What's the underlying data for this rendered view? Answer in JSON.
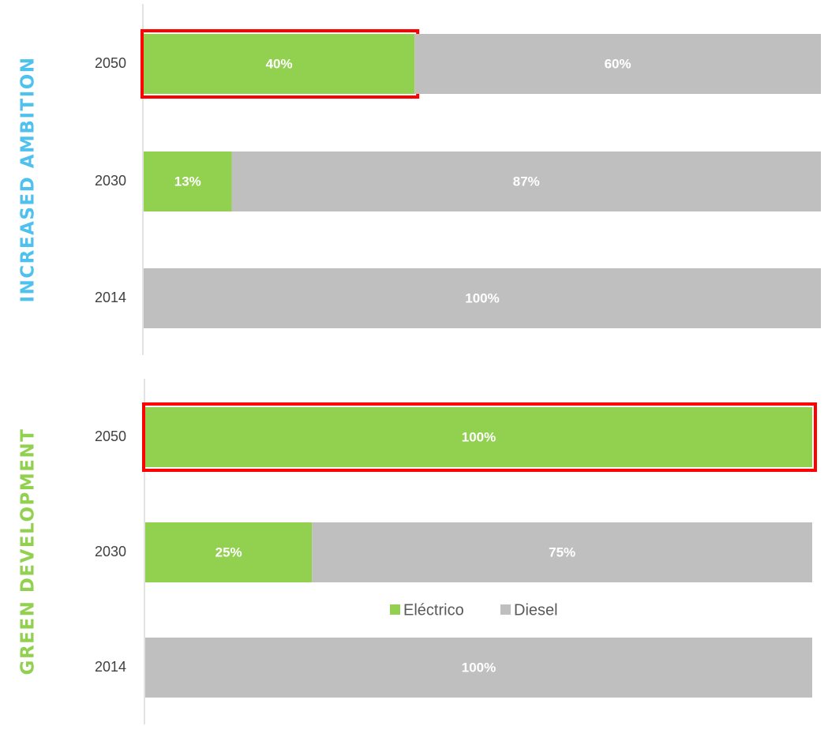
{
  "chart_data": {
    "type": "bar",
    "orientation": "horizontal",
    "stacked": true,
    "categories": [
      "2050",
      "2030",
      "2014",
      "2050",
      "2030",
      "2014"
    ],
    "groups": [
      {
        "label": "INCREASED AMBITION",
        "color": "#4fc1ef"
      },
      {
        "label": "GREEN DEVELOPMENT",
        "color": "#92d050"
      }
    ],
    "xlim": [
      0,
      100
    ],
    "highlight_color": "#ff0000",
    "series": [
      {
        "name": "Eléctrico",
        "color": "#92d050",
        "values": [
          40,
          13,
          0,
          100,
          25,
          0
        ],
        "value_labels": [
          "40%",
          "13%",
          null,
          "100%",
          "25%",
          null
        ],
        "highlighted": [
          true,
          false,
          false,
          true,
          false,
          false
        ]
      },
      {
        "name": "Diesel",
        "color": "#bfbfbf",
        "values": [
          60,
          87,
          100,
          0,
          75,
          100
        ],
        "value_labels": [
          "60%",
          "87%",
          "100%",
          null,
          "75%",
          "100%"
        ],
        "highlighted": [
          false,
          false,
          false,
          false,
          false,
          false
        ]
      }
    ],
    "legend": "bottom"
  }
}
